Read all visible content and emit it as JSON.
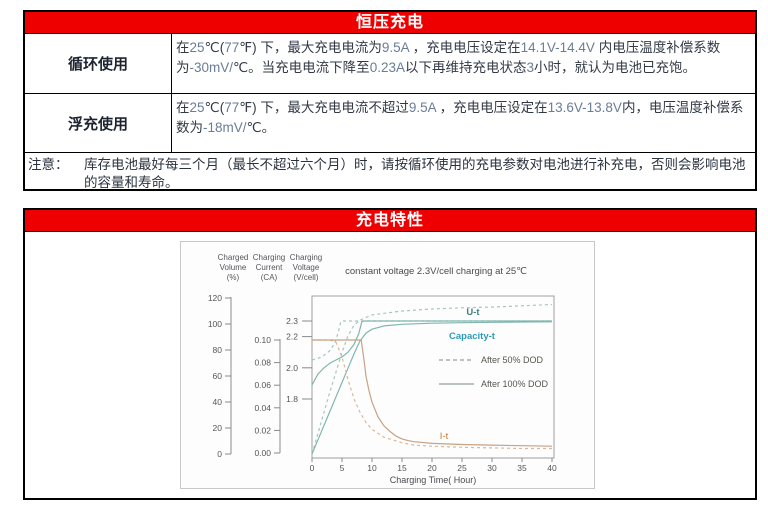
{
  "section1": {
    "title": "恒压充电",
    "rows": [
      {
        "header": "循环使用",
        "segments": [
          {
            "t": "在",
            "c": "zh"
          },
          {
            "t": "25",
            "c": "num"
          },
          {
            "t": "℃(",
            "c": "zh"
          },
          {
            "t": "77",
            "c": "num"
          },
          {
            "t": "℉) 下，最大充电电流为",
            "c": "zh"
          },
          {
            "t": "9.5A",
            "c": "num"
          },
          {
            "t": " ，充电电压设定在",
            "c": "zh"
          },
          {
            "t": "14.1V-14.4V",
            "c": "num"
          },
          {
            "t": " 内电压温度补偿系数为",
            "c": "zh"
          },
          {
            "t": "-30mV/",
            "c": "num"
          },
          {
            "t": "℃。当充电电流下降至",
            "c": "zh"
          },
          {
            "t": "0.23A",
            "c": "num"
          },
          {
            "t": "以下再维持充电状态",
            "c": "zh"
          },
          {
            "t": "3",
            "c": "num"
          },
          {
            "t": "小时，就认为电池已充饱。",
            "c": "zh"
          }
        ]
      },
      {
        "header": "浮充使用",
        "segments": [
          {
            "t": "在",
            "c": "zh"
          },
          {
            "t": "25",
            "c": "num"
          },
          {
            "t": "℃(",
            "c": "zh"
          },
          {
            "t": "77",
            "c": "num"
          },
          {
            "t": "℉) 下，最大充电电流不超过",
            "c": "zh"
          },
          {
            "t": "9.5A",
            "c": "num"
          },
          {
            "t": " ，充电电压设定在",
            "c": "zh"
          },
          {
            "t": "13.6V-13.8V",
            "c": "num"
          },
          {
            "t": "内，电压温度补偿系数为",
            "c": "zh"
          },
          {
            "t": "-18mV/",
            "c": "num"
          },
          {
            "t": "℃。",
            "c": "zh"
          }
        ]
      }
    ],
    "note_label": "注意：",
    "note_text": "库存电池最好每三个月（最长不超过六个月）时，请按循环使用的充电参数对电池进行补充电，否则会影响电池的容量和寿命。"
  },
  "section2": {
    "title": "充电特性",
    "chart_data": {
      "type": "line",
      "title": "constant voltage 2.3V/cell charging at 25℃",
      "xlabel": "Charging Time( Hour)",
      "x_ticks": [
        0,
        5,
        10,
        15,
        20,
        25,
        30,
        35,
        40
      ],
      "x_range": [
        0,
        40
      ],
      "grid": false,
      "legend_position": "right-middle",
      "axes": [
        {
          "id": "volume",
          "label_lines": [
            "Charged",
            "Volume",
            "(%)"
          ],
          "ticks": [
            "120",
            "100",
            "80",
            "60",
            "40",
            "20",
            "0"
          ],
          "range": [
            0,
            120
          ]
        },
        {
          "id": "current",
          "label_lines": [
            "Charging",
            "Current",
            "(CA)"
          ],
          "ticks": [
            "0.10",
            "0.08",
            "0.06",
            "0.04",
            "0.02",
            "0.00"
          ],
          "range": [
            0,
            0.1
          ]
        },
        {
          "id": "voltage",
          "label_lines": [
            "Charging",
            "Voltage",
            "(V/cell)"
          ],
          "ticks": [
            "2.3",
            "2.2",
            "2.0",
            "1.8"
          ],
          "range": [
            1.45,
            2.35
          ]
        }
      ],
      "series": [
        {
          "name": "Capacity-t After 50% DOD",
          "axis": "volume",
          "dashed": true,
          "color": "#a5c6bf",
          "points": [
            [
              0,
              0
            ],
            [
              1,
              16
            ],
            [
              2,
              32
            ],
            [
              3,
              48
            ],
            [
              4,
              63
            ],
            [
              5,
              78
            ],
            [
              6,
              91
            ],
            [
              7,
              99
            ],
            [
              8,
              103
            ],
            [
              10,
              107
            ],
            [
              15,
              110
            ],
            [
              20,
              111.5
            ],
            [
              25,
              112.5
            ],
            [
              30,
              113
            ],
            [
              35,
              114
            ],
            [
              40,
              115
            ]
          ]
        },
        {
          "name": "Capacity-t After 100% DOD",
          "axis": "volume",
          "dashed": false,
          "color": "#7fb7ae",
          "points": [
            [
              0,
              0
            ],
            [
              1,
              11
            ],
            [
              2,
              22
            ],
            [
              3,
              33
            ],
            [
              4,
              44
            ],
            [
              5,
              55
            ],
            [
              6,
              66
            ],
            [
              7,
              77
            ],
            [
              8,
              87
            ],
            [
              9,
              93
            ],
            [
              10,
              96
            ],
            [
              12,
              98.5
            ],
            [
              15,
              99.8
            ],
            [
              20,
              100.6
            ],
            [
              25,
              101
            ],
            [
              30,
              101.3
            ],
            [
              35,
              101.5
            ],
            [
              40,
              101.7
            ]
          ]
        },
        {
          "name": "U-t After 50% DOD",
          "axis": "voltage",
          "dashed": true,
          "color": "#a5c6bf",
          "points": [
            [
              0,
              2.05
            ],
            [
              1,
              2.06
            ],
            [
              2,
              2.08
            ],
            [
              3,
              2.11
            ],
            [
              3.8,
              2.16
            ],
            [
              4.4,
              2.23
            ],
            [
              4.8,
              2.295
            ],
            [
              5,
              2.3
            ],
            [
              10,
              2.3
            ],
            [
              20,
              2.3
            ],
            [
              30,
              2.3
            ],
            [
              40,
              2.3
            ]
          ]
        },
        {
          "name": "U-t After 100% DOD",
          "axis": "voltage",
          "dashed": false,
          "color": "#7fb7ae",
          "points": [
            [
              0,
              1.89
            ],
            [
              1,
              1.96
            ],
            [
              2,
              2.0
            ],
            [
              3,
              2.03
            ],
            [
              4,
              2.05
            ],
            [
              5,
              2.07
            ],
            [
              6,
              2.1
            ],
            [
              7,
              2.15
            ],
            [
              7.8,
              2.22
            ],
            [
              8.3,
              2.295
            ],
            [
              8.6,
              2.3
            ],
            [
              15,
              2.3
            ],
            [
              25,
              2.3
            ],
            [
              40,
              2.3
            ]
          ]
        },
        {
          "name": "I-t After 50% DOD",
          "axis": "current",
          "dashed": true,
          "color": "#d8b89a",
          "points": [
            [
              0,
              0.1
            ],
            [
              3,
              0.1
            ],
            [
              4,
              0.098
            ],
            [
              5,
              0.085
            ],
            [
              6,
              0.065
            ],
            [
              7,
              0.048
            ],
            [
              8,
              0.036
            ],
            [
              9,
              0.027
            ],
            [
              10,
              0.021
            ],
            [
              12,
              0.014
            ],
            [
              15,
              0.009
            ],
            [
              17,
              0.007
            ],
            [
              20,
              0.006
            ],
            [
              25,
              0.005
            ],
            [
              30,
              0.0045
            ],
            [
              35,
              0.004
            ],
            [
              40,
              0.004
            ]
          ]
        },
        {
          "name": "I-t After 100% DOD",
          "axis": "current",
          "dashed": false,
          "color": "#c9a183",
          "points": [
            [
              0,
              0.1
            ],
            [
              8.2,
              0.1
            ],
            [
              8.6,
              0.085
            ],
            [
              9,
              0.068
            ],
            [
              9.5,
              0.055
            ],
            [
              10,
              0.045
            ],
            [
              11,
              0.032
            ],
            [
              12,
              0.024
            ],
            [
              13,
              0.019
            ],
            [
              14,
              0.015
            ],
            [
              15,
              0.0125
            ],
            [
              16,
              0.011
            ],
            [
              17,
              0.01
            ],
            [
              20,
              0.0085
            ],
            [
              25,
              0.0075
            ],
            [
              30,
              0.007
            ],
            [
              35,
              0.0065
            ],
            [
              40,
              0.006
            ]
          ]
        }
      ],
      "legend": [
        {
          "label": "After 50% DOD",
          "style": "dashed"
        },
        {
          "label": "After 100% DOD",
          "style": "solid"
        }
      ],
      "annotations": [
        {
          "text": "U-t",
          "color": "#3f7f7c",
          "x": 292,
          "y": 73,
          "anchor": "middle",
          "bold": true
        },
        {
          "text": "Capacity-t",
          "color": "#2e9ab5",
          "x": 268,
          "y": 97,
          "anchor": "start",
          "bold": true
        },
        {
          "text": "I-t",
          "color": "#c87830",
          "x": 263,
          "y": 197,
          "anchor": "middle",
          "bold": false
        }
      ],
      "colors": {
        "axis_text": "#55565a",
        "legend_text": "#55564f",
        "legend_sample": "#959e97",
        "plot_border": "#a0a0a0"
      }
    }
  }
}
